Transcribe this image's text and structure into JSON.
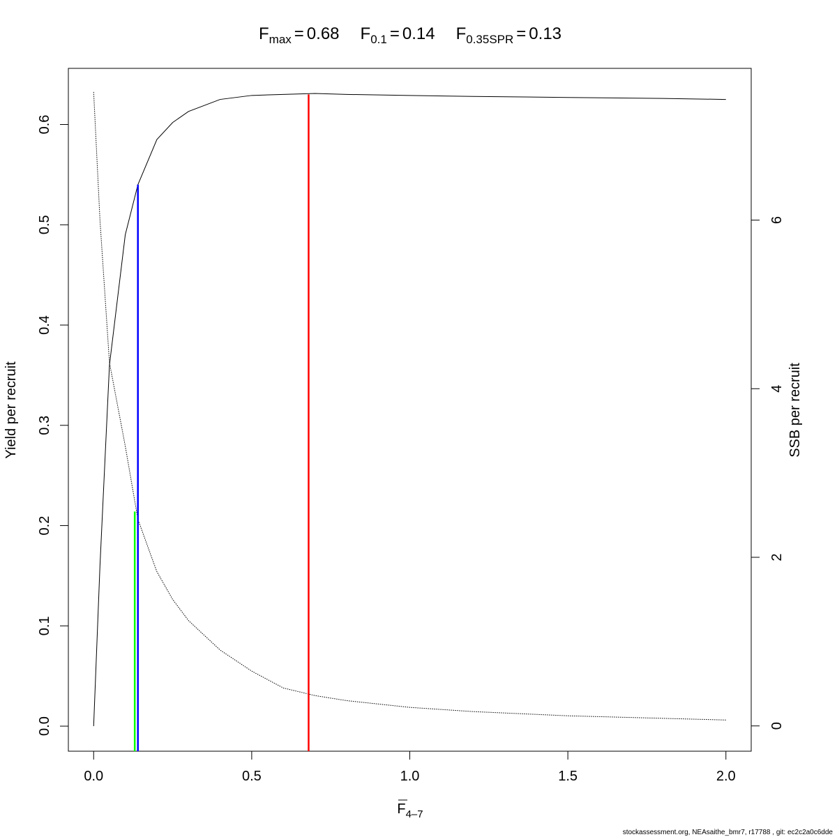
{
  "chart_data": {
    "type": "line",
    "reference_lines": [
      {
        "symbol": "F",
        "subscript": "max",
        "equals_sign": "=",
        "value": 0.68,
        "color": "#ff0000",
        "top": 0.63
      },
      {
        "symbol": "F",
        "subscript": "0.1",
        "equals_sign": "=",
        "value": 0.14,
        "color": "#0000ff",
        "top": 0.54
      },
      {
        "symbol": "F",
        "subscript": "0.35SPR",
        "equals_sign": "=",
        "value": 0.13,
        "color": "#00ff00",
        "top": 0.214
      }
    ],
    "xlabel": {
      "symbol": "F",
      "subscript": "4–7"
    },
    "ylabel": "Yield per recruit",
    "y2label": "SSB per recruit",
    "footer": "stockassessment.org, NEAsaithe_bmr7, r17788 , git: ec2c2a0c6dde",
    "x": [
      0,
      0.02,
      0.05,
      0.1,
      0.14,
      0.2,
      0.25,
      0.3,
      0.4,
      0.5,
      0.6,
      0.7,
      0.8,
      1.0,
      1.2,
      1.5,
      1.8,
      2.0
    ],
    "series": [
      {
        "name": "Yield per recruit",
        "color": "#000000",
        "line_style": "solid",
        "values": [
          0,
          0.16,
          0.36,
          0.49,
          0.54,
          0.585,
          0.602,
          0.613,
          0.625,
          0.629,
          0.63,
          0.631,
          0.63,
          0.629,
          0.628,
          0.627,
          0.626,
          0.625
        ]
      },
      {
        "name": "SSB per recruit",
        "color": "#000000",
        "line_style": "dotted",
        "axis": "y2",
        "values": [
          7.52,
          6.0,
          4.31,
          3.32,
          2.45,
          1.83,
          1.5,
          1.25,
          0.9,
          0.65,
          0.45,
          0.36,
          0.3,
          0.22,
          0.17,
          0.12,
          0.09,
          0.07
        ]
      }
    ],
    "xlim": [
      -0.08,
      2.08
    ],
    "xticks": [
      {
        "value": 0,
        "label": "0.0"
      },
      0.5,
      {
        "value": 1,
        "label": "1.0"
      },
      1.5,
      {
        "value": 2,
        "label": "2.0"
      }
    ],
    "ylim": [
      -0.025,
      0.656
    ],
    "yticks": [
      {
        "value": 0,
        "label": "0.0"
      },
      0.1,
      0.2,
      0.3,
      0.4,
      0.5,
      0.6
    ],
    "y2lim": [
      -0.3,
      7.8
    ],
    "y2ticks": [
      0,
      2,
      4,
      6
    ],
    "grid": false
  }
}
